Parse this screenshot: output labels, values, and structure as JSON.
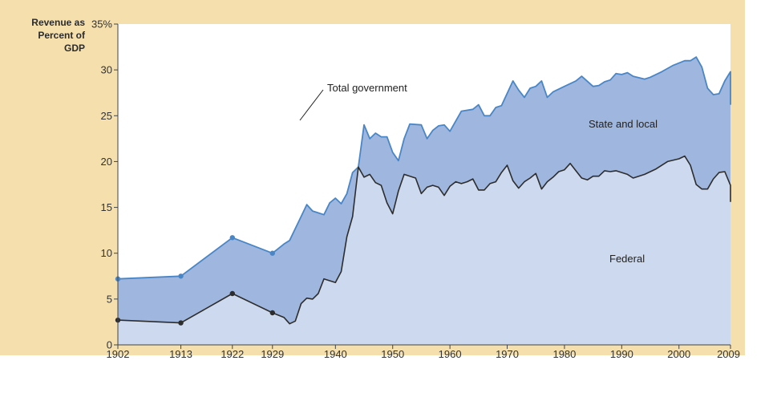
{
  "chart_data": {
    "type": "area",
    "ylabel_lines": [
      "Revenue as",
      "Percent of",
      "GDP"
    ],
    "ylim": [
      0,
      35
    ],
    "yticks": [
      0,
      5,
      10,
      15,
      20,
      25,
      30,
      35
    ],
    "ytick_labels": [
      "0",
      "5",
      "10",
      "15",
      "20",
      "25",
      "30",
      "35%"
    ],
    "xlim": [
      1902,
      2009
    ],
    "xticks": [
      1902,
      1913,
      1922,
      1929,
      1940,
      1950,
      1960,
      1970,
      1980,
      1990,
      2000,
      2009
    ],
    "xtick_labels": [
      "1902",
      "1913",
      "1922",
      "1929",
      "1940",
      "1950",
      "1960",
      "1970",
      "1980",
      "1990",
      "2000",
      "2009"
    ],
    "annotations": {
      "total": "Total government",
      "state_local": "State and local",
      "federal": "Federal"
    },
    "colors": {
      "frame_bg": "#f4dfad",
      "plot_bg": "#ffffff",
      "state_local_fill": "#9fb6de",
      "federal_fill": "#cdd9ee",
      "total_line": "#4a86c5",
      "federal_line": "#2d2d2d",
      "axis": "#444444"
    },
    "series": [
      {
        "name": "Total government",
        "marker_years": [
          1902,
          1913,
          1922,
          1929
        ],
        "points": [
          [
            1902,
            7.2
          ],
          [
            1913,
            7.5
          ],
          [
            1922,
            11.7
          ],
          [
            1929,
            10.0
          ],
          [
            1931,
            11.0
          ],
          [
            1932,
            11.4
          ],
          [
            1934,
            14.0
          ],
          [
            1935,
            15.3
          ],
          [
            1936,
            14.6
          ],
          [
            1937,
            14.4
          ],
          [
            1938,
            14.2
          ],
          [
            1939,
            15.5
          ],
          [
            1940,
            16.0
          ],
          [
            1941,
            15.4
          ],
          [
            1942,
            16.5
          ],
          [
            1943,
            18.8
          ],
          [
            1944,
            19.4
          ],
          [
            1945,
            24.0
          ],
          [
            1946,
            22.5
          ],
          [
            1947,
            23.1
          ],
          [
            1948,
            22.7
          ],
          [
            1949,
            22.7
          ],
          [
            1950,
            21.0
          ],
          [
            1951,
            20.1
          ],
          [
            1952,
            22.5
          ],
          [
            1953,
            24.1
          ],
          [
            1955,
            24.0
          ],
          [
            1956,
            22.5
          ],
          [
            1957,
            23.4
          ],
          [
            1958,
            23.9
          ],
          [
            1959,
            24.0
          ],
          [
            1960,
            23.3
          ],
          [
            1962,
            25.5
          ],
          [
            1964,
            25.7
          ],
          [
            1965,
            26.2
          ],
          [
            1966,
            25.0
          ],
          [
            1967,
            25.0
          ],
          [
            1968,
            25.9
          ],
          [
            1969,
            26.1
          ],
          [
            1971,
            28.8
          ],
          [
            1972,
            27.8
          ],
          [
            1973,
            27.0
          ],
          [
            1974,
            28.0
          ],
          [
            1975,
            28.2
          ],
          [
            1976,
            28.8
          ],
          [
            1977,
            27.0
          ],
          [
            1978,
            27.6
          ],
          [
            1980,
            28.2
          ],
          [
            1982,
            28.8
          ],
          [
            1983,
            29.3
          ],
          [
            1985,
            28.2
          ],
          [
            1986,
            28.3
          ],
          [
            1987,
            28.7
          ],
          [
            1988,
            28.9
          ],
          [
            1989,
            29.6
          ],
          [
            1990,
            29.5
          ],
          [
            1991,
            29.7
          ],
          [
            1992,
            29.3
          ],
          [
            1994,
            29.0
          ],
          [
            1995,
            29.2
          ],
          [
            1997,
            29.8
          ],
          [
            1999,
            30.5
          ],
          [
            2001,
            31.0
          ],
          [
            2002,
            31.0
          ],
          [
            2003,
            31.4
          ],
          [
            2004,
            30.3
          ],
          [
            2005,
            28.0
          ],
          [
            2006,
            27.3
          ],
          [
            2007,
            27.4
          ],
          [
            2008,
            28.8
          ],
          [
            2009,
            29.8
          ],
          [
            2010,
            29.8
          ],
          [
            2012,
            26.2
          ]
        ]
      },
      {
        "name": "Federal",
        "marker_years": [
          1902,
          1913,
          1922,
          1929
        ],
        "points": [
          [
            1902,
            2.7
          ],
          [
            1913,
            2.4
          ],
          [
            1922,
            5.6
          ],
          [
            1929,
            3.5
          ],
          [
            1931,
            3.0
          ],
          [
            1932,
            2.3
          ],
          [
            1933,
            2.6
          ],
          [
            1934,
            4.5
          ],
          [
            1935,
            5.1
          ],
          [
            1936,
            5.0
          ],
          [
            1937,
            5.6
          ],
          [
            1938,
            7.2
          ],
          [
            1940,
            6.8
          ],
          [
            1941,
            8.0
          ],
          [
            1942,
            11.8
          ],
          [
            1943,
            14.0
          ],
          [
            1944,
            19.4
          ],
          [
            1945,
            18.3
          ],
          [
            1946,
            18.6
          ],
          [
            1947,
            17.7
          ],
          [
            1948,
            17.4
          ],
          [
            1949,
            15.5
          ],
          [
            1950,
            14.3
          ],
          [
            1951,
            16.8
          ],
          [
            1952,
            18.6
          ],
          [
            1954,
            18.2
          ],
          [
            1955,
            16.5
          ],
          [
            1956,
            17.2
          ],
          [
            1957,
            17.4
          ],
          [
            1958,
            17.2
          ],
          [
            1959,
            16.3
          ],
          [
            1960,
            17.3
          ],
          [
            1961,
            17.8
          ],
          [
            1962,
            17.6
          ],
          [
            1963,
            17.8
          ],
          [
            1964,
            18.1
          ],
          [
            1965,
            16.9
          ],
          [
            1966,
            16.9
          ],
          [
            1967,
            17.6
          ],
          [
            1968,
            17.8
          ],
          [
            1969,
            18.8
          ],
          [
            1970,
            19.6
          ],
          [
            1971,
            17.9
          ],
          [
            1972,
            17.1
          ],
          [
            1973,
            17.8
          ],
          [
            1974,
            18.2
          ],
          [
            1975,
            18.7
          ],
          [
            1976,
            17.0
          ],
          [
            1977,
            17.8
          ],
          [
            1978,
            18.3
          ],
          [
            1979,
            18.9
          ],
          [
            1980,
            19.1
          ],
          [
            1981,
            19.8
          ],
          [
            1982,
            19.0
          ],
          [
            1983,
            18.2
          ],
          [
            1984,
            18.0
          ],
          [
            1985,
            18.4
          ],
          [
            1986,
            18.4
          ],
          [
            1987,
            19.0
          ],
          [
            1988,
            18.9
          ],
          [
            1989,
            19.0
          ],
          [
            1991,
            18.6
          ],
          [
            1992,
            18.2
          ],
          [
            1994,
            18.6
          ],
          [
            1996,
            19.2
          ],
          [
            1998,
            20.0
          ],
          [
            2000,
            20.3
          ],
          [
            2001,
            20.6
          ],
          [
            2002,
            19.6
          ],
          [
            2003,
            17.5
          ],
          [
            2004,
            17.0
          ],
          [
            2005,
            17.0
          ],
          [
            2006,
            18.1
          ],
          [
            2007,
            18.8
          ],
          [
            2008,
            18.9
          ],
          [
            2009,
            17.4
          ],
          [
            2010,
            15.6
          ]
        ]
      }
    ]
  }
}
